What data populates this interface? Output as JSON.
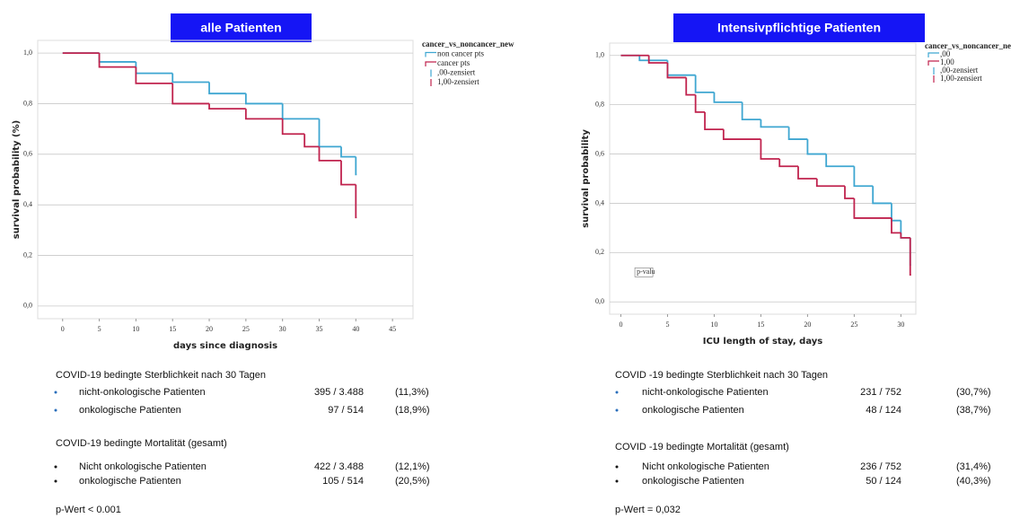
{
  "panels": [
    {
      "header": "alle Patienten",
      "stats": [
        {
          "title": "COVID-19 bedingte  Sterblichkeit  nach 30 Tagen",
          "rows": [
            {
              "label": "nicht-onkologische  Patienten",
              "count": "395 / 3.488",
              "percent": "(11,3%)"
            },
            {
              "label": "onkologische  Patienten",
              "count": "97 /  514",
              "percent": "(18,9%)"
            }
          ]
        },
        {
          "title": "COVID-19 bedingte  Mortalität  (gesamt)",
          "rows": [
            {
              "label": "Nicht onkologische  Patienten",
              "count": "422 / 3.488",
              "percent": "(12,1%)"
            },
            {
              "label": "onkologische  Patienten",
              "count": "105 / 514",
              "percent": "(20,5%)"
            }
          ]
        }
      ],
      "p_value": "p-Wert < 0.001"
    },
    {
      "header": "Intensivpflichtige Patienten",
      "stats": [
        {
          "title": "COVID -19 bedingte  Sterblichkeit  nach 30  Tagen",
          "rows": [
            {
              "label": "nicht-onkologische  Patienten",
              "count": "231 / 752",
              "percent": "(30,7%)"
            },
            {
              "label": "onkologische  Patienten",
              "count": "48 / 124",
              "percent": "(38,7%)"
            }
          ]
        },
        {
          "title": "COVID -19 bedingte  Mortalität  (gesamt)",
          "rows": [
            {
              "label": "Nicht onkologische  Patienten",
              "count": "236 / 752",
              "percent": "(31,4%)"
            },
            {
              "label": "onkologische  Patienten",
              "count": "50 / 124",
              "percent": "(40,3%)"
            }
          ]
        }
      ],
      "p_value": "p-Wert = 0,032"
    }
  ],
  "chart_data": [
    {
      "type": "step",
      "x_label": "days since diagnosis",
      "y_label": "survival probability (%)",
      "legend_title": "cancer_vs_noncancer_new",
      "series": [
        {
          "name": "non cancer pts",
          "color": "#3ea6d1",
          "x": [
            0,
            5,
            10,
            15,
            20,
            25,
            30,
            35,
            38,
            40
          ],
          "values": [
            1.0,
            0.965,
            0.92,
            0.885,
            0.84,
            0.8,
            0.74,
            0.63,
            0.59,
            0.52
          ]
        },
        {
          "name": "cancer pts",
          "color": "#c0234e",
          "x": [
            0,
            5,
            10,
            15,
            20,
            25,
            30,
            33,
            35,
            38,
            40
          ],
          "values": [
            1.0,
            0.945,
            0.88,
            0.8,
            0.78,
            0.74,
            0.68,
            0.63,
            0.575,
            0.48,
            0.35
          ]
        }
      ],
      "censored_legend": [
        {
          "name": ",00-zensiert",
          "color": "#3ea6d1"
        },
        {
          "name": "1,00-zensiert",
          "color": "#c0234e"
        }
      ],
      "xlim": [
        -3.4,
        47.8
      ],
      "xticks": [
        0,
        5,
        10,
        15,
        20,
        25,
        30,
        35,
        40,
        45
      ],
      "ylim": [
        -0.05,
        1.05
      ],
      "yticks": [
        {
          "value": 0,
          "label": "0,0"
        },
        {
          "value": 0.2,
          "label": "0,2"
        },
        {
          "value": 0.4,
          "label": "0,4"
        },
        {
          "value": 0.6,
          "label": "0,6"
        },
        {
          "value": 0.8,
          "label": "0,8"
        },
        {
          "value": 1,
          "label": "1,0"
        }
      ],
      "grid": true
    },
    {
      "type": "step",
      "x_label": "ICU length of stay, days",
      "y_label": "survival probability",
      "legend_title": "cancer_vs_noncancer_new",
      "annotation": "p-valu",
      "series": [
        {
          "name": ",00",
          "color": "#3ea6d1",
          "x": [
            0,
            2,
            5,
            8,
            10,
            13,
            15,
            18,
            20,
            22,
            25,
            27,
            29,
            30,
            31
          ],
          "values": [
            1.0,
            0.98,
            0.92,
            0.85,
            0.81,
            0.74,
            0.71,
            0.66,
            0.6,
            0.55,
            0.47,
            0.4,
            0.33,
            0.26,
            0.15
          ]
        },
        {
          "name": "1,00",
          "color": "#c0234e",
          "x": [
            0,
            3,
            5,
            7,
            8,
            9,
            11,
            15,
            17,
            19,
            21,
            24,
            25,
            29,
            30,
            31
          ],
          "values": [
            1.0,
            0.97,
            0.91,
            0.84,
            0.77,
            0.7,
            0.66,
            0.58,
            0.55,
            0.5,
            0.47,
            0.42,
            0.34,
            0.28,
            0.26,
            0.11
          ]
        }
      ],
      "censored_legend": [
        {
          "name": ",00-zensiert",
          "color": "#3ea6d1"
        },
        {
          "name": "1,00-zensiert",
          "color": "#c0234e"
        }
      ],
      "xlim": [
        -1.2,
        31.6
      ],
      "xticks": [
        0,
        5,
        10,
        15,
        20,
        25,
        30
      ],
      "ylim": [
        -0.05,
        1.05
      ],
      "yticks": [
        {
          "value": 0,
          "label": "0,0"
        },
        {
          "value": 0.2,
          "label": "0,2"
        },
        {
          "value": 0.4,
          "label": "0,4"
        },
        {
          "value": 0.6,
          "label": "0,6"
        },
        {
          "value": 0.8,
          "label": "0,8"
        },
        {
          "value": 1,
          "label": "1,0"
        }
      ],
      "grid": true
    }
  ]
}
